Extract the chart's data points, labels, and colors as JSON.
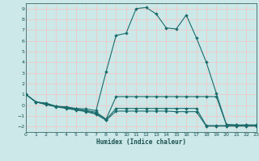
{
  "xlabel": "Humidex (Indice chaleur)",
  "bg_color": "#cce8e8",
  "grid_color": "#f0c8c8",
  "line_color": "#1a6b6b",
  "xlim": [
    0,
    23
  ],
  "ylim": [
    -2.5,
    9.5
  ],
  "xticks": [
    0,
    1,
    2,
    3,
    4,
    5,
    6,
    7,
    8,
    9,
    10,
    11,
    12,
    13,
    14,
    15,
    16,
    17,
    18,
    19,
    20,
    21,
    22,
    23
  ],
  "yticks": [
    -2,
    -1,
    0,
    1,
    2,
    3,
    4,
    5,
    6,
    7,
    8,
    9
  ],
  "series": [
    {
      "x": [
        0,
        1,
        2,
        3,
        4,
        5,
        6,
        7,
        8,
        9,
        10,
        11,
        12,
        13,
        14,
        15,
        16,
        17,
        18,
        19,
        20,
        21,
        22,
        23
      ],
      "y": [
        1.0,
        0.3,
        0.2,
        -0.1,
        -0.15,
        -0.3,
        -0.35,
        -0.5,
        3.1,
        6.5,
        6.7,
        9.0,
        9.1,
        8.5,
        7.2,
        7.1,
        8.4,
        6.3,
        4.0,
        1.1,
        -1.8,
        -1.85,
        -1.85,
        -1.85
      ]
    },
    {
      "x": [
        0,
        1,
        2,
        3,
        4,
        5,
        6,
        7,
        8,
        9,
        10,
        11,
        12,
        13,
        14,
        15,
        16,
        17,
        18,
        19,
        20,
        21,
        22,
        23
      ],
      "y": [
        1.0,
        0.3,
        0.15,
        -0.1,
        -0.2,
        -0.35,
        -0.5,
        -0.65,
        -1.3,
        0.8,
        0.8,
        0.8,
        0.8,
        0.8,
        0.8,
        0.8,
        0.8,
        0.8,
        0.8,
        0.8,
        -1.8,
        -1.85,
        -1.85,
        -1.85
      ]
    },
    {
      "x": [
        0,
        1,
        2,
        3,
        4,
        5,
        6,
        7,
        8,
        9,
        10,
        11,
        12,
        13,
        14,
        15,
        16,
        17,
        18,
        19,
        20,
        21,
        22,
        23
      ],
      "y": [
        1.0,
        0.3,
        0.1,
        -0.1,
        -0.25,
        -0.4,
        -0.55,
        -0.75,
        -1.35,
        -0.3,
        -0.3,
        -0.3,
        -0.3,
        -0.3,
        -0.3,
        -0.3,
        -0.3,
        -0.3,
        -1.9,
        -1.9,
        -1.9,
        -1.9,
        -1.9,
        -1.9
      ]
    },
    {
      "x": [
        0,
        1,
        2,
        3,
        4,
        5,
        6,
        7,
        8,
        9,
        10,
        11,
        12,
        13,
        14,
        15,
        16,
        17,
        18,
        19,
        20,
        21,
        22,
        23
      ],
      "y": [
        1.0,
        0.3,
        0.05,
        -0.15,
        -0.3,
        -0.45,
        -0.6,
        -0.85,
        -1.4,
        -0.55,
        -0.55,
        -0.55,
        -0.55,
        -0.55,
        -0.55,
        -0.6,
        -0.6,
        -0.6,
        -1.95,
        -1.95,
        -1.95,
        -1.95,
        -1.95,
        -1.95
      ]
    }
  ]
}
